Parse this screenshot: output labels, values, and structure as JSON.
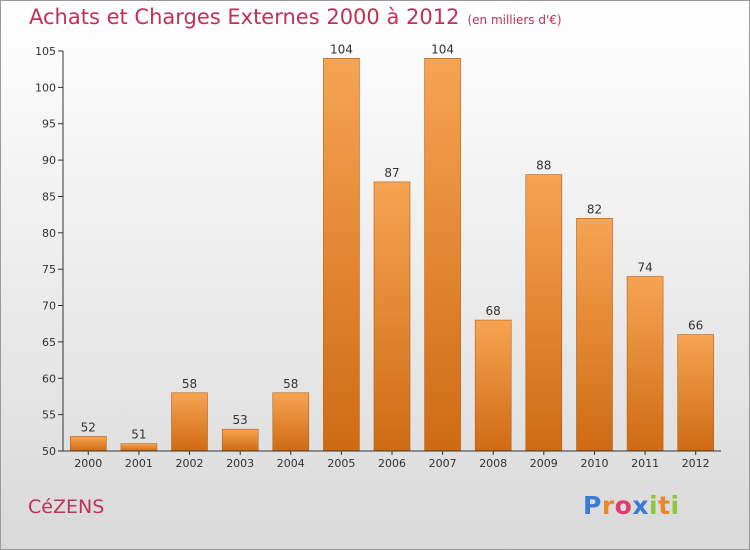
{
  "header": {
    "title": "Achats et Charges Externes 2000 à 2012",
    "subtitle": "(en milliers d'€)"
  },
  "commune": "CéZENS",
  "logo": {
    "letters": [
      "P",
      "r",
      "o",
      "x",
      "i",
      "t",
      "i"
    ],
    "colors": [
      "#3a7bd5",
      "#e8872a",
      "#e23a6b",
      "#3a7bd5",
      "#8cc63f",
      "#e8872a",
      "#8cc63f"
    ]
  },
  "colors": {
    "bar_light": "#f6a452",
    "bar_dark": "#cf6a14",
    "title": "#c0305a",
    "axis": "#333333"
  },
  "chart_data": {
    "type": "bar",
    "categories": [
      "2000",
      "2001",
      "2002",
      "2003",
      "2004",
      "2005",
      "2006",
      "2007",
      "2008",
      "2009",
      "2010",
      "2011",
      "2012"
    ],
    "values": [
      52,
      51,
      58,
      53,
      58,
      104,
      87,
      104,
      68,
      88,
      82,
      74,
      66
    ],
    "title": "Achats et Charges Externes 2000 à 2012",
    "ylabel": "",
    "xlabel": "",
    "ylim": [
      50,
      105
    ],
    "yticks": [
      50,
      55,
      60,
      65,
      70,
      75,
      80,
      85,
      90,
      95,
      100,
      105
    ],
    "grid": false
  }
}
